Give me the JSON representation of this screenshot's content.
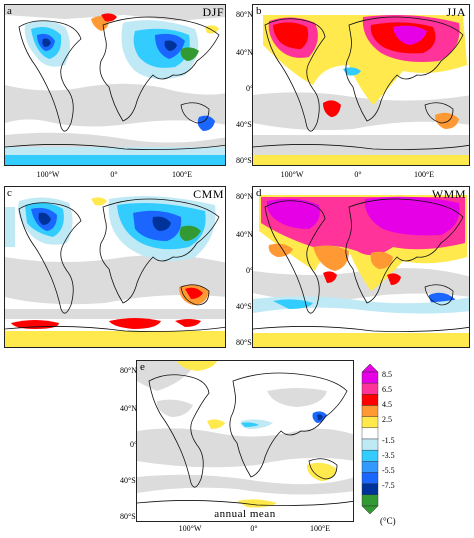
{
  "panels": [
    {
      "id": "a",
      "label": "a",
      "season": "DJF"
    },
    {
      "id": "b",
      "label": "b",
      "season": "JJA"
    },
    {
      "id": "c",
      "label": "c",
      "season": "CMM"
    },
    {
      "id": "d",
      "label": "d",
      "season": "WMM"
    },
    {
      "id": "e",
      "label": "e",
      "season": "annual mean"
    }
  ],
  "lat_ticks": [
    "80°N",
    "40°N",
    "0°",
    "40°S",
    "80°S"
  ],
  "lon_ticks": [
    "100°W",
    "0°",
    "100°E"
  ],
  "colorbar": {
    "unit": "(°C)",
    "levels": [
      "8.5",
      "6.5",
      "4.5",
      "2.5",
      "-1.5",
      "-3.5",
      "-5.5",
      "-7.5"
    ],
    "colors": [
      "#e600e6",
      "#ff3399",
      "#ff0000",
      "#ff9933",
      "#ffe94d",
      "#ffffff",
      "#bfe9f5",
      "#33ccff",
      "#3399ff",
      "#1a66ff",
      "#003399",
      "#339933"
    ]
  }
}
